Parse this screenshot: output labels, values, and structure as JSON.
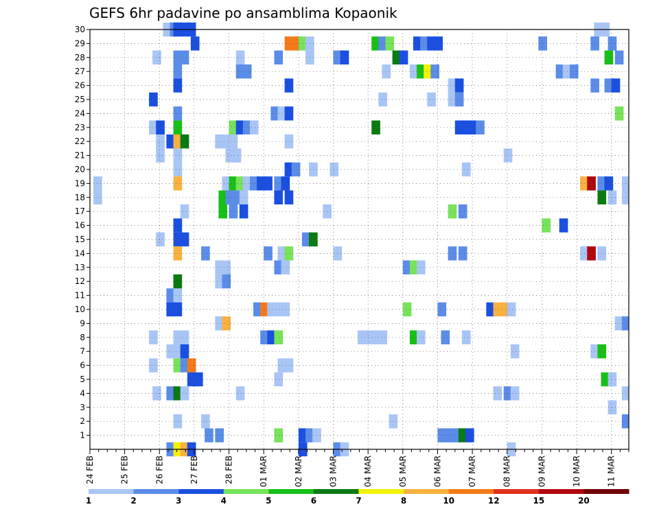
{
  "chart_data": {
    "type": "heatmap",
    "title": "GEFS 6hr padavine po ansamblima Kopaonik",
    "x_tick_labels": [
      "24 FEB",
      "25 FEB",
      "26 FEB",
      "27 FEB",
      "28 FEB",
      "01 MAR",
      "02 MAR",
      "03 MAR",
      "04 MAR",
      "05 MAR",
      "06 MAR",
      "07 MAR",
      "08 MAR",
      "09 MAR",
      "10 MAR",
      "11 MAR"
    ],
    "y_tick_labels": [
      "1",
      "2",
      "3",
      "4",
      "5",
      "6",
      "7",
      "8",
      "9",
      "10",
      "11",
      "12",
      "13",
      "14",
      "15",
      "16",
      "17",
      "18",
      "19",
      "20",
      "21",
      "22",
      "23",
      "24",
      "25",
      "26",
      "27",
      "28",
      "29",
      "30"
    ],
    "x_range_days": [
      0,
      15.5
    ],
    "y_range": [
      0,
      30
    ],
    "grid": true,
    "colorbar": {
      "placement": "bottom",
      "labels": [
        "1",
        "2",
        "3",
        "4",
        "5",
        "6",
        "7",
        "8",
        "10",
        "12",
        "15",
        "20"
      ],
      "colors": [
        "#a9c5f5",
        "#5b8ce8",
        "#1a4fe0",
        "#77e35a",
        "#19bf19",
        "#0a7a12",
        "#f5f200",
        "#f9b13f",
        "#f47a1a",
        "#e0301c",
        "#b0080c",
        "#6e0000"
      ]
    },
    "cells": [
      [
        2.1,
        30,
        0
      ],
      [
        2.3,
        30,
        1
      ],
      [
        2.4,
        30,
        2
      ],
      [
        2.6,
        30,
        2
      ],
      [
        2.8,
        30,
        2
      ],
      [
        14.5,
        30,
        0
      ],
      [
        14.7,
        30,
        0
      ],
      [
        2.9,
        29,
        2
      ],
      [
        5.6,
        29,
        8
      ],
      [
        5.8,
        29,
        8
      ],
      [
        6.0,
        29,
        3
      ],
      [
        6.2,
        29,
        0
      ],
      [
        8.1,
        29,
        4
      ],
      [
        8.3,
        29,
        1
      ],
      [
        8.5,
        29,
        3
      ],
      [
        9.3,
        29,
        2
      ],
      [
        9.5,
        29,
        1
      ],
      [
        9.7,
        29,
        2
      ],
      [
        9.9,
        29,
        2
      ],
      [
        12.9,
        29,
        1
      ],
      [
        14.4,
        29,
        1
      ],
      [
        14.9,
        29,
        1
      ],
      [
        1.8,
        28,
        0
      ],
      [
        2.4,
        28,
        1
      ],
      [
        2.6,
        28,
        1
      ],
      [
        4.2,
        28,
        0
      ],
      [
        5.3,
        28,
        1
      ],
      [
        6.2,
        28,
        0
      ],
      [
        7.0,
        28,
        1
      ],
      [
        7.2,
        28,
        2
      ],
      [
        8.7,
        28,
        5
      ],
      [
        8.9,
        28,
        2
      ],
      [
        14.8,
        28,
        4
      ],
      [
        15.1,
        28,
        1
      ],
      [
        2.4,
        27,
        1
      ],
      [
        4.2,
        27,
        1
      ],
      [
        4.4,
        27,
        1
      ],
      [
        8.4,
        27,
        0
      ],
      [
        9.2,
        27,
        0
      ],
      [
        9.4,
        27,
        4
      ],
      [
        9.6,
        27,
        6
      ],
      [
        9.8,
        27,
        1
      ],
      [
        13.4,
        27,
        1
      ],
      [
        13.6,
        27,
        0
      ],
      [
        13.8,
        27,
        1
      ],
      [
        2.4,
        26,
        2
      ],
      [
        5.6,
        26,
        2
      ],
      [
        10.3,
        26,
        0
      ],
      [
        10.5,
        26,
        2
      ],
      [
        14.4,
        26,
        1
      ],
      [
        14.8,
        26,
        1
      ],
      [
        15.0,
        26,
        2
      ],
      [
        1.7,
        25,
        2
      ],
      [
        8.3,
        25,
        0
      ],
      [
        9.7,
        25,
        0
      ],
      [
        10.3,
        25,
        0
      ],
      [
        10.5,
        25,
        1
      ],
      [
        2.4,
        24,
        1
      ],
      [
        5.2,
        24,
        1
      ],
      [
        5.4,
        24,
        0
      ],
      [
        5.6,
        24,
        2
      ],
      [
        15.1,
        24,
        3
      ],
      [
        1.7,
        23,
        0
      ],
      [
        1.9,
        23,
        2
      ],
      [
        2.4,
        23,
        4
      ],
      [
        4.0,
        23,
        3
      ],
      [
        4.2,
        23,
        2
      ],
      [
        4.4,
        23,
        1
      ],
      [
        4.6,
        23,
        0
      ],
      [
        8.1,
        23,
        5
      ],
      [
        10.5,
        23,
        2
      ],
      [
        10.7,
        23,
        2
      ],
      [
        10.9,
        23,
        2
      ],
      [
        11.1,
        23,
        1
      ],
      [
        1.9,
        22,
        0
      ],
      [
        2.2,
        22,
        2
      ],
      [
        2.4,
        22,
        7
      ],
      [
        2.6,
        22,
        5
      ],
      [
        3.6,
        22,
        0
      ],
      [
        3.8,
        22,
        0
      ],
      [
        4.0,
        22,
        0
      ],
      [
        5.6,
        22,
        0
      ],
      [
        1.9,
        21,
        0
      ],
      [
        2.4,
        21,
        0
      ],
      [
        3.9,
        21,
        0
      ],
      [
        4.1,
        21,
        0
      ],
      [
        11.9,
        21,
        0
      ],
      [
        2.4,
        20,
        0
      ],
      [
        5.6,
        20,
        2
      ],
      [
        5.8,
        20,
        1
      ],
      [
        6.3,
        20,
        0
      ],
      [
        6.9,
        20,
        0
      ],
      [
        10.7,
        20,
        0
      ],
      [
        0.1,
        19,
        0
      ],
      [
        2.4,
        19,
        7
      ],
      [
        3.8,
        19,
        0
      ],
      [
        4.0,
        19,
        4
      ],
      [
        4.2,
        19,
        3
      ],
      [
        4.4,
        19,
        0
      ],
      [
        4.6,
        19,
        1
      ],
      [
        4.8,
        19,
        2
      ],
      [
        5.0,
        19,
        2
      ],
      [
        5.3,
        19,
        1
      ],
      [
        5.5,
        19,
        2
      ],
      [
        14.1,
        19,
        7
      ],
      [
        14.3,
        19,
        10
      ],
      [
        14.6,
        19,
        1
      ],
      [
        14.8,
        19,
        2
      ],
      [
        15.3,
        19,
        0
      ],
      [
        0.1,
        18,
        0
      ],
      [
        3.7,
        18,
        4
      ],
      [
        3.9,
        18,
        1
      ],
      [
        4.1,
        18,
        1
      ],
      [
        4.3,
        18,
        0
      ],
      [
        5.3,
        18,
        2
      ],
      [
        5.6,
        18,
        2
      ],
      [
        14.6,
        18,
        5
      ],
      [
        14.9,
        18,
        0
      ],
      [
        15.3,
        18,
        0
      ],
      [
        2.6,
        17,
        0
      ],
      [
        3.7,
        17,
        4
      ],
      [
        4.0,
        17,
        1
      ],
      [
        4.3,
        17,
        2
      ],
      [
        6.7,
        17,
        0
      ],
      [
        10.3,
        17,
        3
      ],
      [
        10.6,
        17,
        1
      ],
      [
        2.4,
        16,
        2
      ],
      [
        13.0,
        16,
        3
      ],
      [
        13.5,
        16,
        2
      ],
      [
        1.9,
        15,
        0
      ],
      [
        2.4,
        15,
        2
      ],
      [
        2.6,
        15,
        2
      ],
      [
        6.1,
        15,
        1
      ],
      [
        6.3,
        15,
        5
      ],
      [
        2.4,
        14,
        7
      ],
      [
        3.2,
        14,
        1
      ],
      [
        5.0,
        14,
        1
      ],
      [
        5.4,
        14,
        0
      ],
      [
        5.6,
        14,
        3
      ],
      [
        7.0,
        14,
        0
      ],
      [
        10.3,
        14,
        1
      ],
      [
        10.6,
        14,
        1
      ],
      [
        14.1,
        14,
        0
      ],
      [
        14.3,
        14,
        10
      ],
      [
        14.6,
        14,
        0
      ],
      [
        3.6,
        13,
        0
      ],
      [
        3.8,
        13,
        0
      ],
      [
        5.3,
        13,
        1
      ],
      [
        5.5,
        13,
        0
      ],
      [
        9.0,
        13,
        1
      ],
      [
        9.2,
        13,
        3
      ],
      [
        9.4,
        13,
        0
      ],
      [
        2.4,
        12,
        5
      ],
      [
        3.6,
        12,
        0
      ],
      [
        3.8,
        12,
        1
      ],
      [
        2.2,
        11,
        1
      ],
      [
        2.4,
        11,
        0
      ],
      [
        2.2,
        10,
        2
      ],
      [
        2.4,
        10,
        2
      ],
      [
        4.7,
        10,
        1
      ],
      [
        4.9,
        10,
        8
      ],
      [
        5.1,
        10,
        0
      ],
      [
        5.3,
        10,
        0
      ],
      [
        5.5,
        10,
        0
      ],
      [
        9.0,
        10,
        3
      ],
      [
        10.0,
        10,
        1
      ],
      [
        11.4,
        10,
        2
      ],
      [
        11.6,
        10,
        7
      ],
      [
        11.8,
        10,
        7
      ],
      [
        12.0,
        10,
        0
      ],
      [
        3.6,
        9,
        0
      ],
      [
        3.8,
        9,
        7
      ],
      [
        15.1,
        9,
        0
      ],
      [
        15.3,
        9,
        1
      ],
      [
        1.7,
        8,
        0
      ],
      [
        2.4,
        8,
        0
      ],
      [
        2.6,
        8,
        0
      ],
      [
        4.9,
        8,
        1
      ],
      [
        5.1,
        8,
        2
      ],
      [
        5.3,
        8,
        3
      ],
      [
        7.7,
        8,
        0
      ],
      [
        7.9,
        8,
        0
      ],
      [
        8.1,
        8,
        0
      ],
      [
        8.3,
        8,
        0
      ],
      [
        9.2,
        8,
        4
      ],
      [
        9.4,
        8,
        0
      ],
      [
        10.1,
        8,
        1
      ],
      [
        10.7,
        8,
        0
      ],
      [
        2.2,
        7,
        0
      ],
      [
        2.4,
        7,
        0
      ],
      [
        2.6,
        7,
        2
      ],
      [
        12.1,
        7,
        0
      ],
      [
        14.4,
        7,
        0
      ],
      [
        14.6,
        7,
        4
      ],
      [
        1.7,
        6,
        0
      ],
      [
        2.4,
        6,
        3
      ],
      [
        2.6,
        6,
        1
      ],
      [
        2.8,
        6,
        8
      ],
      [
        5.4,
        6,
        0
      ],
      [
        5.6,
        6,
        0
      ],
      [
        2.8,
        5,
        2
      ],
      [
        3.0,
        5,
        2
      ],
      [
        5.3,
        5,
        0
      ],
      [
        14.7,
        5,
        4
      ],
      [
        14.9,
        5,
        0
      ],
      [
        1.8,
        4,
        0
      ],
      [
        2.2,
        4,
        1
      ],
      [
        2.4,
        4,
        5
      ],
      [
        2.6,
        4,
        0
      ],
      [
        4.2,
        4,
        0
      ],
      [
        11.6,
        4,
        0
      ],
      [
        11.9,
        4,
        1
      ],
      [
        12.1,
        4,
        0
      ],
      [
        15.3,
        4,
        0
      ],
      [
        14.9,
        3,
        0
      ],
      [
        2.4,
        2,
        0
      ],
      [
        3.2,
        2,
        0
      ],
      [
        8.6,
        2,
        0
      ],
      [
        15.3,
        2,
        1
      ],
      [
        3.3,
        1,
        1
      ],
      [
        3.6,
        1,
        1
      ],
      [
        5.3,
        1,
        3
      ],
      [
        6.0,
        1,
        2
      ],
      [
        6.2,
        1,
        1
      ],
      [
        6.4,
        1,
        0
      ],
      [
        10.0,
        1,
        1
      ],
      [
        10.2,
        1,
        1
      ],
      [
        10.4,
        1,
        1
      ],
      [
        10.6,
        1,
        5
      ],
      [
        10.8,
        1,
        2
      ],
      [
        2.2,
        0,
        1
      ],
      [
        2.4,
        0,
        6
      ],
      [
        2.6,
        0,
        7
      ],
      [
        2.8,
        0,
        2
      ],
      [
        6.0,
        0,
        2
      ],
      [
        7.0,
        0,
        1
      ],
      [
        7.2,
        0,
        0
      ],
      [
        12.0,
        0,
        0
      ]
    ]
  }
}
